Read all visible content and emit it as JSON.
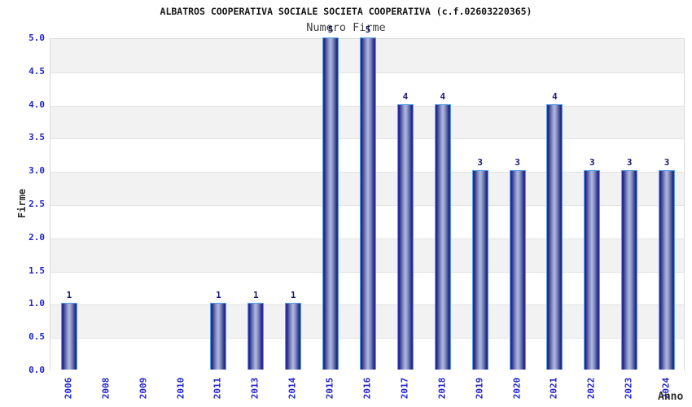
{
  "title": "ALBATROS COOPERATIVA SOCIALE SOCIETA COOPERATIVA (c.f.02603220365)",
  "subtitle": "Numero Firme",
  "chart_data": {
    "type": "bar",
    "title": "ALBATROS COOPERATIVA SOCIALE SOCIETA COOPERATIVA (c.f.02603220365)",
    "subtitle": "Numero Firme",
    "xlabel": "Anno",
    "ylabel": "Firme",
    "categories": [
      "2006",
      "2008",
      "2009",
      "2010",
      "2011",
      "2013",
      "2014",
      "2015",
      "2016",
      "2017",
      "2018",
      "2019",
      "2020",
      "2021",
      "2022",
      "2023",
      "2024"
    ],
    "values": [
      1,
      0,
      0,
      0,
      1,
      1,
      1,
      5,
      5,
      4,
      4,
      3,
      3,
      4,
      3,
      3,
      3
    ],
    "ylim": [
      0.0,
      5.0
    ],
    "ytick_step": 0.5,
    "ytick_labels": [
      "0.0",
      "0.5",
      "1.0",
      "1.5",
      "2.0",
      "2.5",
      "3.0",
      "3.5",
      "4.0",
      "4.5",
      "5.0"
    ],
    "grid": "alternating-horizontal-bands",
    "legend": "none",
    "value_labels_shown_for_nonzero_only": true,
    "colors": {
      "background": "#ffffff",
      "band_gray": "#f2f2f2",
      "band_white": "#ffffff",
      "grid_line": "#e3e3e3",
      "plot_border": "#d9d9d9",
      "tick_label_blue": "#2222cc",
      "value_label_navy": "#16166e",
      "bar_edge_bright": "#2f2fd4",
      "bar_dark": "#23237a",
      "bar_mid": "#7580ba",
      "bar_light_center": "#aab4dc",
      "bar_outline": "#55a0e6",
      "title_color": "#141414",
      "subtitle_color": "#3f3f3f",
      "axis_label_color": "#2e2e2e"
    }
  }
}
